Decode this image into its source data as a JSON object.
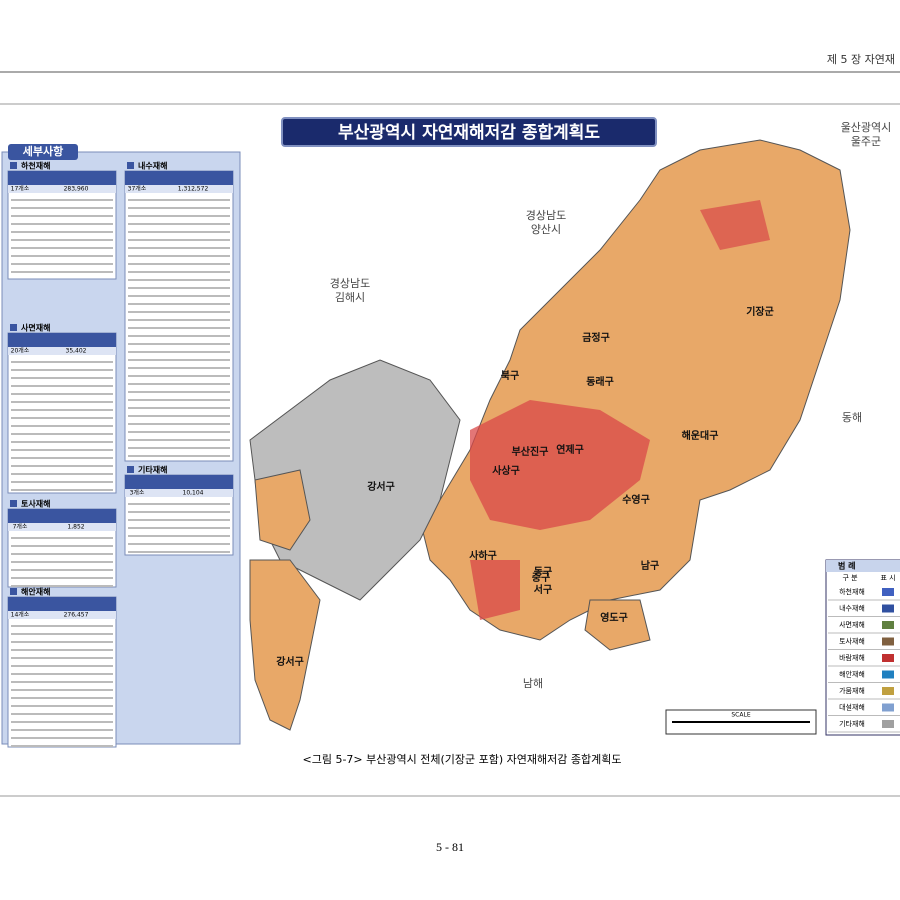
{
  "header": {
    "chapter": "제 5 장 자연재"
  },
  "map": {
    "title": "부산광역시 자연재해저감 종합계획도",
    "regions": [
      "울산광역시",
      "울주군",
      "경상남도",
      "양산시",
      "경상남도",
      "김해시",
      "기장군",
      "금정구",
      "북구",
      "동래구",
      "해운대구",
      "연제구",
      "부산진구",
      "사상구",
      "강서구",
      "수영구",
      "남구",
      "동구",
      "서구",
      "중구",
      "사하구",
      "영도구",
      "강서구",
      "동해",
      "남해"
    ],
    "scale": "SCALE"
  },
  "panel": {
    "title": "세부사항",
    "sections": [
      {
        "title": "하천재해",
        "count": "17개소",
        "total": "283,960"
      },
      {
        "title": "내수재해",
        "count": "37개소",
        "total": "1,312,572"
      },
      {
        "title": "사면재해",
        "count": "20개소",
        "total": "35,402"
      },
      {
        "title": "기타재해",
        "count": "3개소",
        "total": "10,104"
      },
      {
        "title": "토사재해",
        "count": "7개소",
        "total": "1,852"
      },
      {
        "title": "해안재해",
        "count": "14개소",
        "total": "276,457"
      }
    ]
  },
  "legend": {
    "title": "범 례",
    "col1": "구 분",
    "col2": "표 시",
    "items": [
      "하천재해",
      "내수재해",
      "사면재해",
      "토사재해",
      "바람재해",
      "해안재해",
      "가뭄재해",
      "대설재해",
      "기타재해"
    ]
  },
  "caption": "<그림 5-7> 부산광역시 전체(기장군 포함) 자연재해저감 종합계획도",
  "page": "5 - 81"
}
